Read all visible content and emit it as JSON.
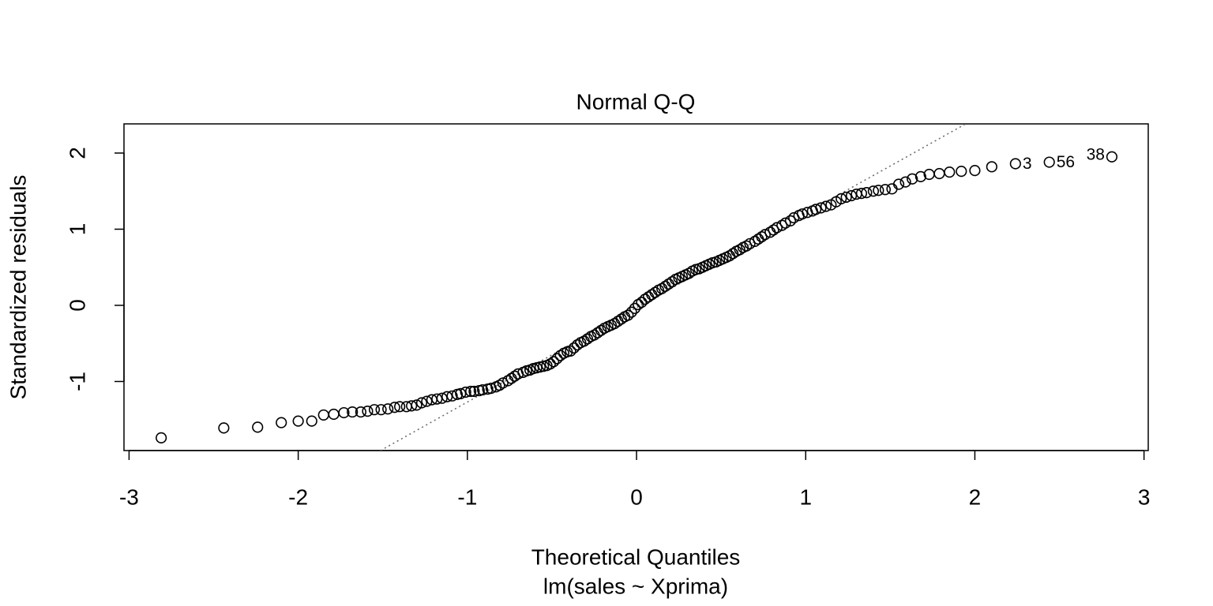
{
  "chart_data": {
    "type": "scatter",
    "title": "Normal Q-Q",
    "x_label": "Theoretical Quantiles",
    "subtitle": "lm(sales ~ Xprima)",
    "y_label": "Standardized residuals",
    "xlim": [
      -3.03,
      3.025
    ],
    "ylim": [
      -1.907,
      2.383
    ],
    "xticks": [
      -3,
      -2,
      -1,
      0,
      1,
      2,
      3
    ],
    "yticks": [
      -1,
      0,
      1,
      2
    ],
    "color": "#000000",
    "x": [
      -2.81,
      -2.44,
      -2.24,
      -2.1,
      -2.0,
      -1.92,
      -1.85,
      -1.79,
      -1.73,
      -1.68,
      -1.63,
      -1.59,
      -1.55,
      -1.51,
      -1.47,
      -1.43,
      -1.4,
      -1.36,
      -1.33,
      -1.3,
      -1.27,
      -1.24,
      -1.21,
      -1.18,
      -1.15,
      -1.12,
      -1.09,
      -1.06,
      -1.04,
      -1.01,
      -0.98,
      -0.96,
      -0.93,
      -0.91,
      -0.88,
      -0.86,
      -0.83,
      -0.81,
      -0.79,
      -0.76,
      -0.74,
      -0.72,
      -0.7,
      -0.67,
      -0.65,
      -0.63,
      -0.61,
      -0.59,
      -0.57,
      -0.55,
      -0.53,
      -0.51,
      -0.49,
      -0.47,
      -0.45,
      -0.43,
      -0.41,
      -0.39,
      -0.37,
      -0.35,
      -0.33,
      -0.31,
      -0.29,
      -0.27,
      -0.25,
      -0.23,
      -0.21,
      -0.19,
      -0.17,
      -0.15,
      -0.13,
      -0.11,
      -0.09,
      -0.07,
      -0.05,
      -0.03,
      -0.01,
      0.01,
      0.03,
      0.05,
      0.07,
      0.09,
      0.11,
      0.13,
      0.15,
      0.17,
      0.19,
      0.21,
      0.23,
      0.25,
      0.27,
      0.29,
      0.31,
      0.33,
      0.35,
      0.37,
      0.39,
      0.41,
      0.43,
      0.45,
      0.47,
      0.49,
      0.51,
      0.53,
      0.55,
      0.57,
      0.59,
      0.61,
      0.63,
      0.65,
      0.67,
      0.7,
      0.72,
      0.74,
      0.76,
      0.79,
      0.81,
      0.83,
      0.86,
      0.88,
      0.91,
      0.93,
      0.96,
      0.98,
      1.01,
      1.04,
      1.06,
      1.09,
      1.12,
      1.15,
      1.18,
      1.21,
      1.24,
      1.27,
      1.3,
      1.33,
      1.36,
      1.4,
      1.43,
      1.47,
      1.51,
      1.55,
      1.59,
      1.63,
      1.68,
      1.73,
      1.79,
      1.85,
      1.92,
      2.0,
      2.1
    ],
    "values": [
      -1.74,
      -1.61,
      -1.6,
      -1.54,
      -1.52,
      -1.52,
      -1.44,
      -1.43,
      -1.41,
      -1.4,
      -1.4,
      -1.39,
      -1.37,
      -1.37,
      -1.36,
      -1.34,
      -1.33,
      -1.33,
      -1.32,
      -1.31,
      -1.28,
      -1.26,
      -1.24,
      -1.23,
      -1.22,
      -1.2,
      -1.19,
      -1.17,
      -1.16,
      -1.14,
      -1.13,
      -1.13,
      -1.12,
      -1.11,
      -1.1,
      -1.09,
      -1.07,
      -1.05,
      -1.02,
      -0.99,
      -0.96,
      -0.93,
      -0.9,
      -0.88,
      -0.86,
      -0.85,
      -0.83,
      -0.82,
      -0.81,
      -0.8,
      -0.79,
      -0.77,
      -0.74,
      -0.7,
      -0.66,
      -0.63,
      -0.61,
      -0.6,
      -0.56,
      -0.52,
      -0.49,
      -0.47,
      -0.44,
      -0.41,
      -0.39,
      -0.36,
      -0.33,
      -0.3,
      -0.28,
      -0.26,
      -0.24,
      -0.21,
      -0.18,
      -0.15,
      -0.13,
      -0.09,
      -0.04,
      0.01,
      0.04,
      0.08,
      0.11,
      0.14,
      0.17,
      0.2,
      0.22,
      0.25,
      0.28,
      0.31,
      0.34,
      0.36,
      0.38,
      0.4,
      0.42,
      0.45,
      0.47,
      0.48,
      0.5,
      0.52,
      0.54,
      0.56,
      0.57,
      0.59,
      0.61,
      0.63,
      0.65,
      0.68,
      0.71,
      0.73,
      0.76,
      0.78,
      0.81,
      0.84,
      0.87,
      0.9,
      0.93,
      0.96,
      0.99,
      1.02,
      1.05,
      1.08,
      1.11,
      1.15,
      1.18,
      1.2,
      1.22,
      1.24,
      1.26,
      1.28,
      1.3,
      1.32,
      1.36,
      1.4,
      1.42,
      1.44,
      1.46,
      1.47,
      1.48,
      1.5,
      1.51,
      1.52,
      1.53,
      1.59,
      1.62,
      1.66,
      1.69,
      1.72,
      1.73,
      1.75,
      1.76,
      1.77,
      1.82
    ],
    "labeled_points": {
      "x": [
        2.24,
        2.44,
        2.81
      ],
      "values": [
        1.86,
        1.88,
        1.95
      ],
      "labels": [
        "3",
        "56",
        "38"
      ]
    },
    "reference_line": {
      "intercept": -0.03,
      "slope": 1.24,
      "color": "#666666",
      "dotted": true
    }
  }
}
